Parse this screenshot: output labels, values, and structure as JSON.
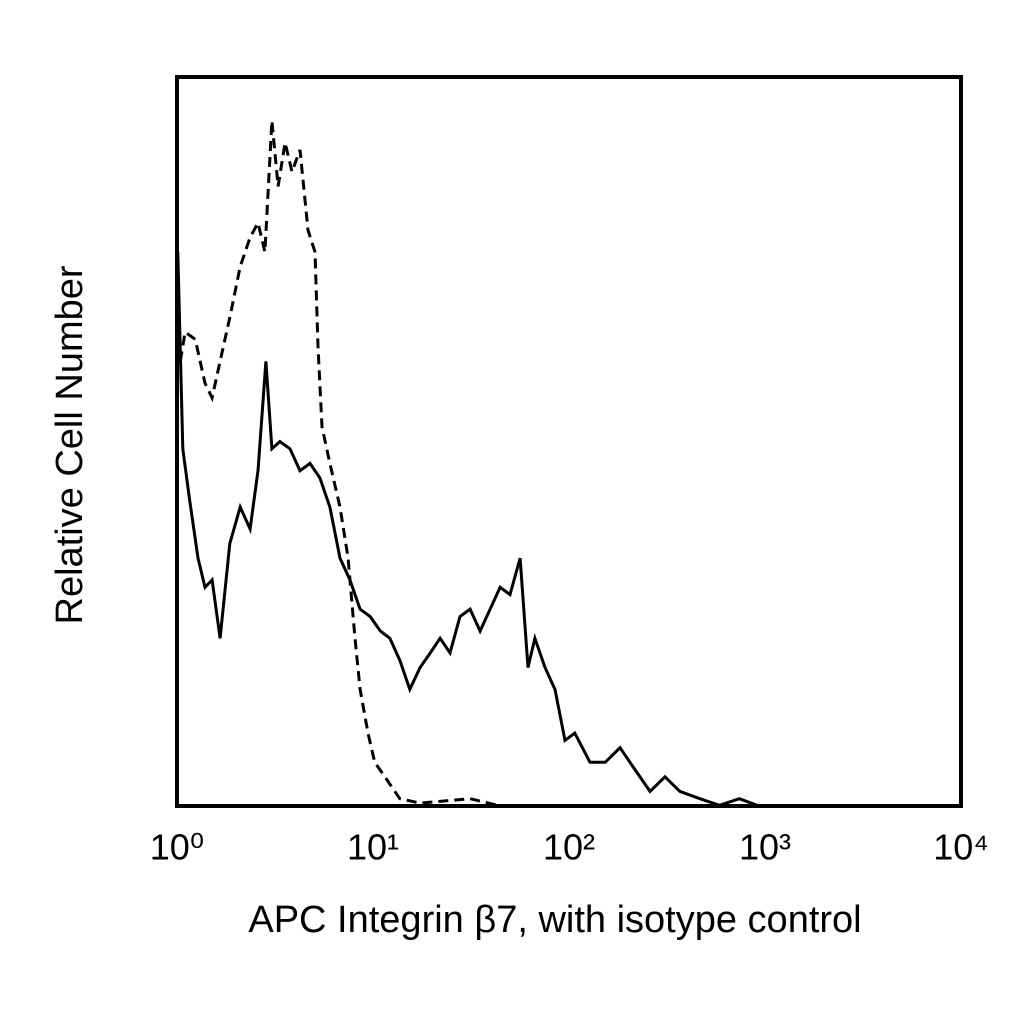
{
  "chart_data": {
    "type": "line",
    "x_label": "APC Integrin β7, with isotype control",
    "y_label": "Relative Cell Number",
    "xscale": "log",
    "xlim": [
      1,
      10000
    ],
    "ylim": [
      0,
      100
    ],
    "xticks": [
      {
        "value": 1,
        "label": "10⁰"
      },
      {
        "value": 10,
        "label": "10¹"
      },
      {
        "value": 100,
        "label": "10²"
      },
      {
        "value": 1000,
        "label": "10³"
      },
      {
        "value": 10000,
        "label": "10⁴"
      }
    ],
    "series": [
      {
        "color": "#000000",
        "dashed": false,
        "x": [
          1.01,
          1.07,
          1.16,
          1.28,
          1.39,
          1.51,
          1.66,
          1.86,
          2.1,
          2.36,
          2.59,
          2.84,
          3.05,
          3.35,
          3.77,
          4.24,
          4.77,
          5.36,
          6.03,
          6.79,
          7.63,
          8.59,
          9.66,
          10.9,
          12.2,
          13.7,
          15.4,
          17.4,
          19.6,
          22.0,
          24.7,
          27.8,
          31.3,
          35.2,
          39.6,
          44.5,
          50.0,
          56.3,
          61.8,
          67.0,
          75.4,
          84.8,
          95.4,
          107,
          128,
          153,
          182,
          217,
          259,
          309,
          368,
          465,
          586,
          740,
          933
        ],
        "values": [
          76,
          49,
          42,
          34,
          30,
          31,
          23,
          36,
          41,
          38,
          46,
          61,
          49,
          50,
          49,
          46,
          47,
          45,
          41,
          34,
          31,
          27,
          26,
          24,
          23,
          20,
          16,
          19,
          21,
          23,
          21,
          26,
          27,
          24,
          27,
          30,
          29,
          34,
          19,
          23,
          19,
          16,
          9,
          10,
          6,
          6,
          8,
          5,
          2,
          4,
          2,
          1,
          0.1,
          1,
          0
        ]
      },
      {
        "color": "#000000",
        "dashed": true,
        "x": [
          1.04,
          1.1,
          1.24,
          1.39,
          1.51,
          1.66,
          1.86,
          2.1,
          2.36,
          2.59,
          2.81,
          3.05,
          3.28,
          3.56,
          3.86,
          4.24,
          4.66,
          5.06,
          5.24,
          5.49,
          6.03,
          6.79,
          7.46,
          8.09,
          8.59,
          9.43,
          10.2,
          11.5,
          13.7,
          17.4,
          31.3,
          44.5
        ],
        "values": [
          61,
          65,
          64,
          58,
          56,
          61,
          67,
          74,
          78,
          80,
          76,
          94,
          85,
          91,
          87,
          90,
          79,
          76,
          63,
          52,
          47,
          41,
          34,
          23,
          16,
          10,
          6,
          4,
          1,
          0.4,
          1,
          0
        ]
      }
    ]
  }
}
